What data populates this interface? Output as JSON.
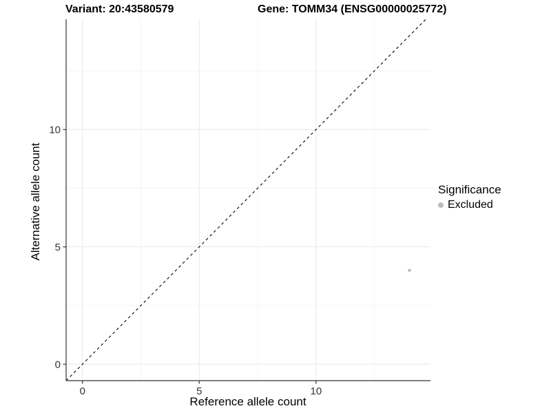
{
  "chart_data": {
    "type": "scatter",
    "title_variant": "Variant: 20:43580579",
    "title_gene": "Gene: TOMM34 (ENSG00000025772)",
    "xlabel": "Reference allele count",
    "ylabel": "Alternative allele count",
    "xlim": [
      -0.7,
      14.9
    ],
    "ylim": [
      -0.7,
      14.7
    ],
    "x_major_ticks": [
      0,
      5,
      10
    ],
    "y_major_ticks": [
      0,
      5,
      10
    ],
    "x_minor_ticks": [
      2.5,
      7.5,
      12.5
    ],
    "y_minor_ticks": [
      2.5,
      7.5,
      12.5
    ],
    "grid": "major+minor",
    "reference_line": {
      "kind": "identity",
      "slope": 1,
      "intercept": 0,
      "style": "dashed",
      "color": "#000000"
    },
    "series": [
      {
        "name": "Excluded",
        "color": "#bebebe",
        "points": [
          {
            "x": 14,
            "y": 4
          }
        ]
      }
    ],
    "legend": {
      "title": "Significance",
      "position": "right",
      "entries": [
        {
          "label": "Excluded",
          "color": "#bebebe",
          "marker": "circle"
        }
      ]
    },
    "colors": {
      "background": "#ffffff",
      "grid_major": "#e8e8e8",
      "grid_minor": "#f3f3f3",
      "axis": "#333333",
      "tick_label": "#333333",
      "point": "#bebebe"
    }
  }
}
